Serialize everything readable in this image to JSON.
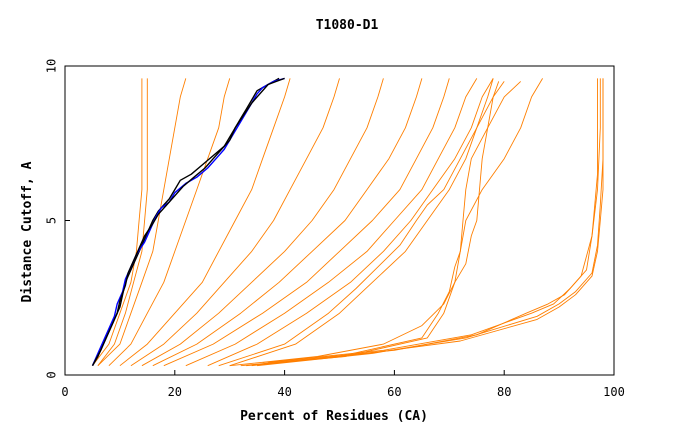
{
  "chart_data": {
    "type": "line",
    "title": "T1080-D1",
    "xlabel": "Percent of Residues (CA)",
    "ylabel": "Distance Cutoff, A",
    "xlim": [
      0,
      100
    ],
    "ylim": [
      0,
      10
    ],
    "xticks": [
      "0",
      "20",
      "40",
      "60",
      "80",
      "100"
    ],
    "yticks": [
      "0",
      "5",
      "10"
    ],
    "grid": false,
    "legend": "none",
    "colors": {
      "bundle": "#ff7f00",
      "highlight_a": "#000000",
      "highlight_b": "#0000ff"
    },
    "series": [
      {
        "color": "#ff7f00",
        "points": [
          [
            5,
            0.3
          ],
          [
            8,
            1
          ],
          [
            10,
            2
          ],
          [
            12,
            3
          ],
          [
            13,
            4
          ],
          [
            13.5,
            5
          ],
          [
            14,
            6
          ],
          [
            14,
            7
          ],
          [
            14,
            8
          ],
          [
            14,
            9
          ],
          [
            14,
            9.6
          ]
        ]
      },
      {
        "color": "#ff7f00",
        "points": [
          [
            6,
            0.3
          ],
          [
            9,
            1
          ],
          [
            11,
            2
          ],
          [
            12.5,
            3
          ],
          [
            14,
            4
          ],
          [
            15,
            6
          ],
          [
            15,
            8
          ],
          [
            15,
            9.6
          ]
        ]
      },
      {
        "color": "#ff7f00",
        "points": [
          [
            6,
            0.3
          ],
          [
            10,
            1
          ],
          [
            12,
            2
          ],
          [
            14,
            3
          ],
          [
            16,
            4
          ],
          [
            17,
            5
          ],
          [
            18,
            6
          ],
          [
            19,
            7
          ],
          [
            20,
            8
          ],
          [
            21,
            9
          ],
          [
            22,
            9.6
          ]
        ]
      },
      {
        "color": "#ff7f00",
        "points": [
          [
            8,
            0.3
          ],
          [
            12,
            1
          ],
          [
            15,
            2
          ],
          [
            18,
            3
          ],
          [
            20,
            4
          ],
          [
            22,
            5
          ],
          [
            24,
            6
          ],
          [
            26,
            7
          ],
          [
            28,
            8
          ],
          [
            29,
            9
          ],
          [
            30,
            9.6
          ]
        ]
      },
      {
        "color": "#ff7f00",
        "points": [
          [
            10,
            0.3
          ],
          [
            15,
            1
          ],
          [
            20,
            2
          ],
          [
            25,
            3
          ],
          [
            28,
            4
          ],
          [
            31,
            5
          ],
          [
            34,
            6
          ],
          [
            36,
            7
          ],
          [
            38,
            8
          ],
          [
            40,
            9
          ],
          [
            41,
            9.6
          ]
        ]
      },
      {
        "color": "#ff7f00",
        "points": [
          [
            12,
            0.3
          ],
          [
            18,
            1
          ],
          [
            24,
            2
          ],
          [
            29,
            3
          ],
          [
            34,
            4
          ],
          [
            38,
            5
          ],
          [
            41,
            6
          ],
          [
            44,
            7
          ],
          [
            47,
            8
          ],
          [
            49,
            9
          ],
          [
            50,
            9.6
          ]
        ]
      },
      {
        "color": "#ff7f00",
        "points": [
          [
            14,
            0.3
          ],
          [
            21,
            1
          ],
          [
            28,
            2
          ],
          [
            34,
            3
          ],
          [
            40,
            4
          ],
          [
            45,
            5
          ],
          [
            49,
            6
          ],
          [
            52,
            7
          ],
          [
            55,
            8
          ],
          [
            57,
            9
          ],
          [
            58,
            9.6
          ]
        ]
      },
      {
        "color": "#ff7f00",
        "points": [
          [
            16,
            0.3
          ],
          [
            24,
            1
          ],
          [
            32,
            2
          ],
          [
            39,
            3
          ],
          [
            45,
            4
          ],
          [
            51,
            5
          ],
          [
            55,
            6
          ],
          [
            59,
            7
          ],
          [
            62,
            8
          ],
          [
            64,
            9
          ],
          [
            65,
            9.6
          ]
        ]
      },
      {
        "color": "#ff7f00",
        "points": [
          [
            18,
            0.3
          ],
          [
            27,
            1
          ],
          [
            36,
            2
          ],
          [
            44,
            3
          ],
          [
            50,
            4
          ],
          [
            56,
            5
          ],
          [
            61,
            6
          ],
          [
            64,
            7
          ],
          [
            67,
            8
          ],
          [
            69,
            9
          ],
          [
            70,
            9.6
          ]
        ]
      },
      {
        "color": "#ff7f00",
        "points": [
          [
            22,
            0.3
          ],
          [
            31,
            1
          ],
          [
            40,
            2
          ],
          [
            48,
            3
          ],
          [
            55,
            4
          ],
          [
            60,
            5
          ],
          [
            65,
            6
          ],
          [
            68,
            7
          ],
          [
            71,
            8
          ],
          [
            73,
            9
          ],
          [
            75,
            9.6
          ]
        ]
      },
      {
        "color": "#ff7f00",
        "points": [
          [
            26,
            0.3
          ],
          [
            35,
            1
          ],
          [
            44,
            2
          ],
          [
            52,
            3
          ],
          [
            58,
            4
          ],
          [
            63,
            5
          ],
          [
            67,
            6
          ],
          [
            71,
            7
          ],
          [
            74,
            8
          ],
          [
            76,
            9
          ],
          [
            78,
            9.6
          ]
        ]
      },
      {
        "color": "#ff7f00",
        "points": [
          [
            30,
            0.3
          ],
          [
            42,
            1
          ],
          [
            50,
            2
          ],
          [
            56,
            3
          ],
          [
            62,
            4
          ],
          [
            66,
            5
          ],
          [
            70,
            6
          ],
          [
            73,
            7
          ],
          [
            75,
            8
          ],
          [
            77,
            9
          ],
          [
            78,
            9.6
          ]
        ]
      },
      {
        "color": "#ff7f00",
        "points": [
          [
            28,
            0.3
          ],
          [
            40,
            1
          ],
          [
            48,
            2
          ],
          [
            53,
            2.8
          ],
          [
            57,
            3.5
          ],
          [
            61,
            4.2
          ],
          [
            64,
            5
          ],
          [
            66,
            5.5
          ],
          [
            69,
            6
          ],
          [
            72,
            7
          ],
          [
            75,
            8
          ],
          [
            78,
            9
          ],
          [
            80,
            9.5
          ]
        ]
      },
      {
        "color": "#ff7f00",
        "points": [
          [
            30,
            0.3
          ],
          [
            46,
            0.6
          ],
          [
            58,
            1
          ],
          [
            65,
            1.6
          ],
          [
            69,
            2.3
          ],
          [
            71,
            3
          ],
          [
            73,
            3.6
          ],
          [
            74,
            4.5
          ],
          [
            75,
            5
          ],
          [
            75.5,
            6
          ],
          [
            76,
            7
          ],
          [
            77,
            8
          ],
          [
            78,
            9
          ],
          [
            79,
            9.5
          ]
        ]
      },
      {
        "color": "#ff7f00",
        "points": [
          [
            32,
            0.3
          ],
          [
            50,
            0.6
          ],
          [
            65,
            1.2
          ],
          [
            68,
            2
          ],
          [
            70,
            2.7
          ],
          [
            71,
            3.5
          ],
          [
            72,
            4
          ],
          [
            72.5,
            5
          ],
          [
            73,
            6
          ],
          [
            74,
            7
          ],
          [
            77,
            8
          ],
          [
            80,
            9
          ],
          [
            83,
            9.5
          ]
        ]
      },
      {
        "color": "#ff7f00",
        "points": [
          [
            33,
            0.3
          ],
          [
            51,
            0.6
          ],
          [
            66,
            1.2
          ],
          [
            69,
            2
          ],
          [
            71,
            3
          ],
          [
            72,
            4
          ],
          [
            73,
            5
          ],
          [
            76,
            6
          ],
          [
            80,
            7
          ],
          [
            83,
            8
          ],
          [
            85,
            9
          ],
          [
            87,
            9.6
          ]
        ]
      },
      {
        "color": "#ff7f00",
        "points": [
          [
            34,
            0.3
          ],
          [
            55,
            0.7
          ],
          [
            72,
            1.1
          ],
          [
            86,
            1.8
          ],
          [
            90,
            2.2
          ],
          [
            93,
            2.6
          ],
          [
            96,
            3.2
          ],
          [
            97,
            4
          ],
          [
            97.5,
            5
          ],
          [
            98,
            6
          ],
          [
            98,
            7
          ],
          [
            98,
            8
          ],
          [
            98,
            9
          ],
          [
            98,
            9.6
          ]
        ]
      },
      {
        "color": "#ff7f00",
        "points": [
          [
            35,
            0.3
          ],
          [
            56,
            0.7
          ],
          [
            73,
            1.2
          ],
          [
            86,
            1.9
          ],
          [
            90,
            2.3
          ],
          [
            93,
            2.7
          ],
          [
            96,
            3.3
          ],
          [
            97,
            4.2
          ],
          [
            97.5,
            5.5
          ],
          [
            98,
            7
          ],
          [
            98,
            9.6
          ]
        ]
      },
      {
        "color": "#ff7f00",
        "points": [
          [
            36,
            0.4
          ],
          [
            58,
            0.8
          ],
          [
            74,
            1.3
          ],
          [
            85,
            2
          ],
          [
            89,
            2.3
          ],
          [
            92,
            2.8
          ],
          [
            95,
            3.4
          ],
          [
            96,
            4.5
          ],
          [
            97,
            6
          ],
          [
            97.5,
            8
          ],
          [
            97.5,
            9.6
          ]
        ]
      },
      {
        "color": "#ff7f00",
        "points": [
          [
            37,
            0.4
          ],
          [
            60,
            0.8
          ],
          [
            75,
            1.3
          ],
          [
            84,
            2
          ],
          [
            88,
            2.3
          ],
          [
            91,
            2.6
          ],
          [
            94,
            3.2
          ],
          [
            96,
            4.5
          ],
          [
            97,
            6.5
          ],
          [
            97,
            9.6
          ]
        ]
      },
      {
        "color": "#000000",
        "points": [
          [
            5,
            0.3
          ],
          [
            6,
            0.6
          ],
          [
            7,
            1
          ],
          [
            8,
            1.4
          ],
          [
            9,
            1.8
          ],
          [
            10,
            2.2
          ],
          [
            10.5,
            2.6
          ],
          [
            11,
            3
          ],
          [
            12,
            3.4
          ],
          [
            13,
            3.8
          ],
          [
            14,
            4.2
          ],
          [
            15,
            4.6
          ],
          [
            16,
            5
          ],
          [
            17,
            5.3
          ],
          [
            18,
            5.5
          ],
          [
            19,
            5.7
          ],
          [
            20,
            6
          ],
          [
            21,
            6.3
          ],
          [
            23,
            6.5
          ],
          [
            25,
            6.8
          ],
          [
            27,
            7.1
          ],
          [
            29,
            7.4
          ],
          [
            30,
            7.7
          ],
          [
            31,
            8
          ],
          [
            32,
            8.3
          ],
          [
            33,
            8.6
          ],
          [
            34,
            8.9
          ],
          [
            35,
            9.2
          ],
          [
            37,
            9.4
          ],
          [
            39,
            9.6
          ]
        ]
      },
      {
        "color": "#0000ff",
        "points": [
          [
            5,
            0.3
          ],
          [
            6,
            0.7
          ],
          [
            7,
            1.1
          ],
          [
            8,
            1.5
          ],
          [
            9,
            1.9
          ],
          [
            9.5,
            2.3
          ],
          [
            10.5,
            2.7
          ],
          [
            11,
            3.1
          ],
          [
            12,
            3.5
          ],
          [
            13,
            3.9
          ],
          [
            14.5,
            4.3
          ],
          [
            15.5,
            4.7
          ],
          [
            16.5,
            5.1
          ],
          [
            17.5,
            5.4
          ],
          [
            19,
            5.6
          ],
          [
            20,
            5.9
          ],
          [
            22,
            6.2
          ],
          [
            24,
            6.4
          ],
          [
            26,
            6.7
          ],
          [
            27.5,
            7
          ],
          [
            29,
            7.3
          ],
          [
            30,
            7.6
          ],
          [
            31,
            7.9
          ],
          [
            32,
            8.2
          ],
          [
            33,
            8.5
          ],
          [
            34,
            8.8
          ],
          [
            35,
            9.1
          ],
          [
            36,
            9.3
          ],
          [
            38,
            9.5
          ],
          [
            40,
            9.6
          ]
        ]
      },
      {
        "color": "#000000",
        "points": [
          [
            5,
            0.3
          ],
          [
            6.5,
            0.8
          ],
          [
            7.5,
            1.2
          ],
          [
            8.5,
            1.6
          ],
          [
            9.5,
            2
          ],
          [
            10,
            2.4
          ],
          [
            11,
            2.9
          ],
          [
            11.5,
            3.3
          ],
          [
            12.5,
            3.7
          ],
          [
            13.5,
            4.1
          ],
          [
            14.5,
            4.5
          ],
          [
            16,
            4.9
          ],
          [
            17,
            5.2
          ],
          [
            18.5,
            5.5
          ],
          [
            20,
            5.8
          ],
          [
            21.5,
            6.1
          ],
          [
            23.5,
            6.4
          ],
          [
            25.5,
            6.7
          ],
          [
            27,
            7
          ],
          [
            28.5,
            7.3
          ],
          [
            30,
            7.6
          ],
          [
            31,
            8
          ],
          [
            32.5,
            8.4
          ],
          [
            34,
            8.8
          ],
          [
            35.5,
            9.1
          ],
          [
            37,
            9.4
          ],
          [
            38.5,
            9.5
          ],
          [
            40,
            9.6
          ]
        ]
      }
    ]
  }
}
